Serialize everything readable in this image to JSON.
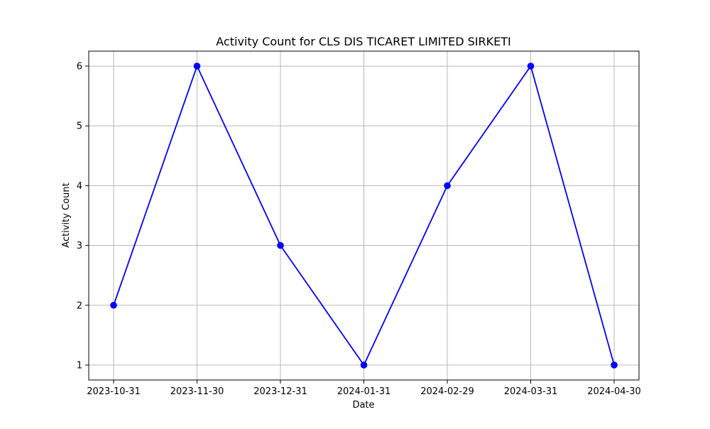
{
  "chart_data": {
    "type": "line",
    "title": "Activity Count for CLS DIS TICARET LIMITED SIRKETI",
    "xlabel": "Date",
    "ylabel": "Activity Count",
    "categories": [
      "2023-10-31",
      "2023-11-30",
      "2023-12-31",
      "2024-01-31",
      "2024-02-29",
      "2024-03-31",
      "2024-04-30"
    ],
    "series": [
      {
        "values": [
          2,
          6,
          3,
          1,
          4,
          6,
          1
        ],
        "color": "#0000ff",
        "marker": "circle"
      }
    ],
    "yticks": [
      1,
      2,
      3,
      4,
      5,
      6
    ],
    "ylim": [
      0.75,
      6.25
    ],
    "grid": true,
    "axis_color": "#000000",
    "grid_color": "#b0b0b0"
  }
}
